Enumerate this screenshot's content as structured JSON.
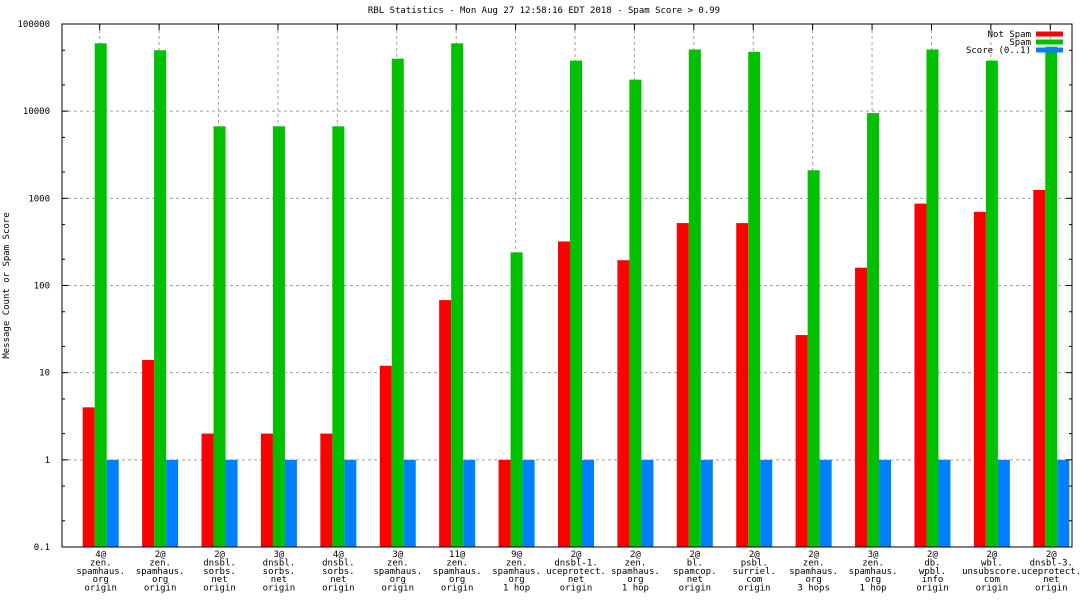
{
  "chart_data": {
    "type": "bar",
    "title": "RBL Statistics - Mon Aug 27 12:58:16 EDT 2018 - Spam Score > 0.99",
    "xlabel": "",
    "ylabel": "Message Count or Spam Score",
    "yscale": "log",
    "ylim": [
      0.1,
      100000
    ],
    "ytick_labels": [
      "0.1",
      "1",
      "10",
      "100",
      "1000",
      "10000",
      "100000"
    ],
    "ytick_values": [
      0.1,
      1,
      10,
      100,
      1000,
      10000,
      100000
    ],
    "grid": true,
    "legend_position": "top-right",
    "categories": [
      [
        "4@",
        "zen.",
        "spamhaus.",
        "org",
        "origin"
      ],
      [
        "2@",
        "zen.",
        "spamhaus.",
        "org",
        "origin"
      ],
      [
        "2@",
        "dnsbl.",
        "sorbs.",
        "net",
        "origin"
      ],
      [
        "3@",
        "dnsbl.",
        "sorbs.",
        "net",
        "origin"
      ],
      [
        "4@",
        "dnsbl.",
        "sorbs.",
        "net",
        "origin"
      ],
      [
        "3@",
        "zen.",
        "spamhaus.",
        "org",
        "origin"
      ],
      [
        "11@",
        "zen.",
        "spamhaus.",
        "org",
        "origin"
      ],
      [
        "9@",
        "zen.",
        "spamhaus.",
        "org",
        "1 hop"
      ],
      [
        "2@",
        "dnsbl-1.",
        "uceprotect.",
        "net",
        "origin"
      ],
      [
        "2@",
        "zen.",
        "spamhaus.",
        "org",
        "1 hop"
      ],
      [
        "2@",
        "bl.",
        "spamcop.",
        "net",
        "origin"
      ],
      [
        "2@",
        "psbl.",
        "surriel.",
        "com",
        "origin"
      ],
      [
        "2@",
        "zen.",
        "spamhaus.",
        "org",
        "3 hops"
      ],
      [
        "3@",
        "zen.",
        "spamhaus.",
        "org",
        "1 hop"
      ],
      [
        "2@",
        "db.",
        "wpbl.",
        "info",
        "origin"
      ],
      [
        "2@",
        "wbl.",
        "unsubscore.",
        "com",
        "origin"
      ],
      [
        "2@",
        "dnsbl-3.",
        "uceprotect.",
        "net",
        "origin"
      ]
    ],
    "series": [
      {
        "name": "Not Spam",
        "color": "#ff0000",
        "values": [
          4,
          14,
          2,
          2,
          2,
          12,
          68,
          1,
          320,
          195,
          520,
          520,
          27,
          160,
          870,
          700,
          1250
        ]
      },
      {
        "name": "Spam",
        "color": "#00c000",
        "values": [
          60000,
          50000,
          6700,
          6700,
          6700,
          40000,
          60000,
          240,
          38000,
          23000,
          51000,
          48000,
          2100,
          9500,
          51000,
          38000,
          55000
        ]
      },
      {
        "name": "Score (0..1)",
        "color": "#0080ff",
        "values": [
          1,
          1,
          1,
          1,
          1,
          1,
          1,
          1,
          1,
          1,
          1,
          1,
          1,
          1,
          1,
          1,
          1
        ]
      }
    ]
  }
}
